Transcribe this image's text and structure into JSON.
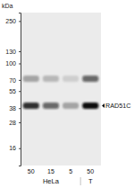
{
  "chart_data": {
    "type": "blot",
    "y_label": "kDa",
    "ylim": [
      300,
      11
    ],
    "yticks": [
      250,
      130,
      100,
      70,
      55,
      38,
      28,
      16
    ],
    "log": "y",
    "lanes": [
      50,
      15,
      5,
      50
    ],
    "lane_groups": [
      "HeLa",
      "HeLa",
      "HeLa",
      "T"
    ],
    "bands": [
      {
        "name": "RAD51C",
        "kda": 40,
        "intensity": [
          0.85,
          0.6,
          0.3,
          1
        ]
      },
      {
        "kda": 72,
        "intensity": [
          0.3,
          0.22,
          0.12,
          0.6
        ]
      }
    ]
  }
}
